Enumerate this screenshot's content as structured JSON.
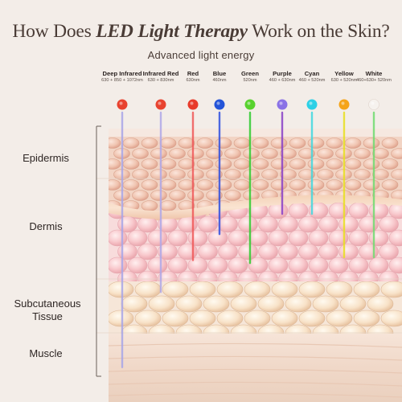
{
  "title": {
    "prefix": "How Does ",
    "emphasis": "LED Light Therapy",
    "suffix": " Work on the Skin?"
  },
  "subtitle": "Advanced light energy",
  "bands": [
    {
      "name": "Deep Infrared",
      "wavelength": "630 + 850 + 1072nm",
      "color": "#e8422f",
      "beam": "#a8a6e8",
      "depth": 0.88
    },
    {
      "name": "Infrared Red",
      "wavelength": "630 + 830nm",
      "color": "#e8432f",
      "beam": "#b0a8e8",
      "depth": 0.62
    },
    {
      "name": "Red",
      "wavelength": "630nm",
      "color": "#e83a2a",
      "beam": "#f05858",
      "depth": 0.51
    },
    {
      "name": "Blue",
      "wavelength": "460nm",
      "color": "#2454d8",
      "beam": "#3050e0",
      "depth": 0.42
    },
    {
      "name": "Green",
      "wavelength": "520nm",
      "color": "#58d22e",
      "beam": "#30cc30",
      "depth": 0.52
    },
    {
      "name": "Purple",
      "wavelength": "460 + 630nm",
      "color": "#8a72e6",
      "beam": "#8840c8",
      "depth": 0.35
    },
    {
      "name": "Cyan",
      "wavelength": "460 + 520nm",
      "color": "#2cd0e6",
      "beam": "#40d8e0",
      "depth": 0.35
    },
    {
      "name": "Yellow",
      "wavelength": "630 + 520nm",
      "color": "#f5a418",
      "beam": "#e8e020",
      "depth": 0.5
    },
    {
      "name": "White",
      "wavelength": "460+630+ 520nm",
      "color": "#f6f2ee",
      "beam": "#70dc70",
      "depth": 0.5
    }
  ],
  "layers": [
    {
      "name": "Epidermis"
    },
    {
      "name": "Dermis"
    },
    {
      "name": "Subcutaneous Tissue"
    },
    {
      "name": "Muscle"
    }
  ]
}
